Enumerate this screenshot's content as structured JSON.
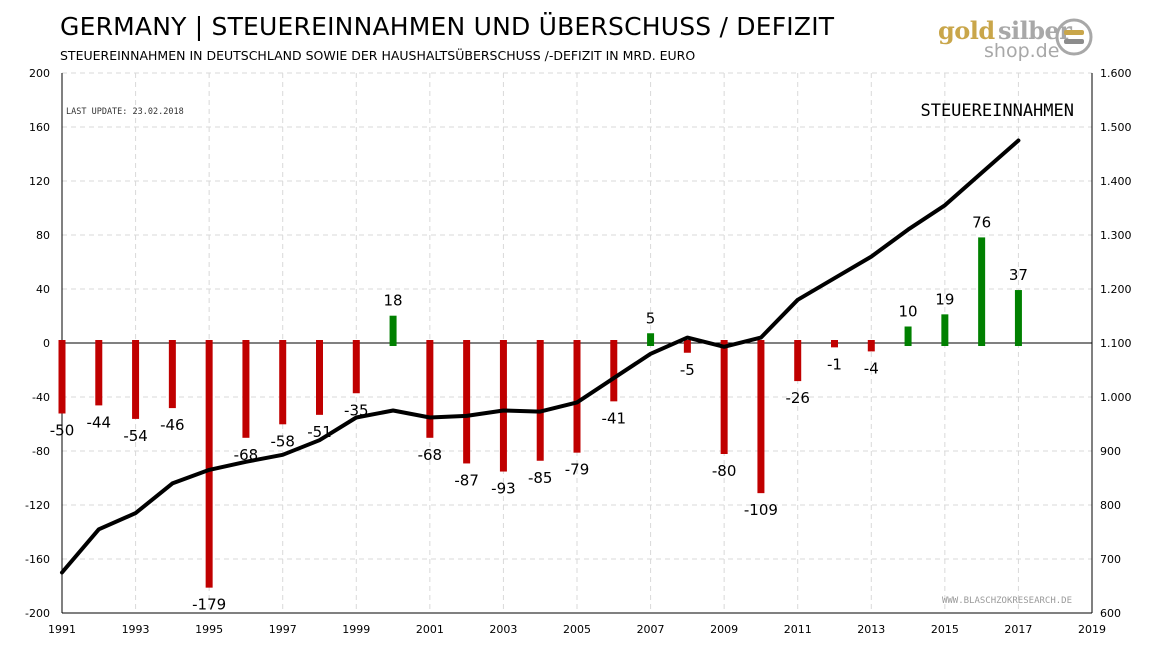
{
  "header": {
    "title": "GERMANY  | STEUEREINNAHMEN UND ÜBERSCHUSS / DEFIZIT",
    "subtitle": "STEUEREINNAHMEN IN DEUTSCHLAND SOWIE DER HAUSHALTSÜBERSCHUSS /-DEFIZIT IN MRD. EURO"
  },
  "logo": {
    "word1": "gold",
    "word2": "silber",
    "word3": "shop.de",
    "icon": "coin-stack-icon"
  },
  "colors": {
    "deficit": "#c00000",
    "surplus": "#008000",
    "line": "#000000",
    "grid": "#d9d9d9"
  },
  "chart_data": {
    "type": "bar",
    "title": "GERMANY  | STEUEREINNAHMEN UND ÜBERSCHUSS / DEFIZIT",
    "subtitle": "STEUEREINNAHMEN IN DEUTSCHLAND SOWIE DER HAUSHALTSÜBERSCHUSS /-DEFIZIT IN MRD. EURO",
    "annotations": {
      "last_update": "LAST UPDATE: 23.02.2018",
      "line_label": "STEUEREINNAHMEN",
      "source": "WWW.BLASCHZOKRESEARCH.DE"
    },
    "x_axis": {
      "range": [
        1991,
        2019
      ],
      "ticks": [
        1991,
        1993,
        1995,
        1997,
        1999,
        2001,
        2003,
        2005,
        2007,
        2009,
        2011,
        2013,
        2015,
        2017,
        2019
      ]
    },
    "y_left": {
      "range": [
        -200,
        200
      ],
      "ticks": [
        -200,
        -160,
        -120,
        -80,
        -40,
        0,
        40,
        80,
        120,
        160,
        200
      ]
    },
    "y_right": {
      "range": [
        600,
        1600
      ],
      "ticks": [
        600,
        700,
        800,
        900,
        1000,
        1100,
        1200,
        1300,
        1400,
        1500,
        1600
      ],
      "tick_labels": [
        "600",
        "700",
        "800",
        "900",
        "1.000",
        "1.100",
        "1.200",
        "1.300",
        "1.400",
        "1.500",
        "1.600"
      ]
    },
    "grid": true,
    "years": [
      1991,
      1992,
      1993,
      1994,
      1995,
      1996,
      1997,
      1998,
      1999,
      2000,
      2001,
      2002,
      2003,
      2004,
      2005,
      2006,
      2007,
      2008,
      2009,
      2010,
      2011,
      2012,
      2013,
      2014,
      2015,
      2016,
      2017
    ],
    "series": [
      {
        "name": "Überschuss / Defizit",
        "type": "bar",
        "axis": "left",
        "values": [
          -50,
          -44,
          -54,
          -46,
          -179,
          -68,
          -58,
          -51,
          -35,
          18,
          -68,
          -87,
          -93,
          -85,
          -79,
          -41,
          5,
          -5,
          -80,
          -109,
          -26,
          -1,
          -4,
          10,
          19,
          76,
          37
        ]
      },
      {
        "name": "STEUEREINNAHMEN",
        "type": "line",
        "axis": "right",
        "values": [
          675,
          755,
          785,
          840,
          865,
          880,
          893,
          920,
          962,
          975,
          962,
          965,
          975,
          973,
          990,
          1035,
          1080,
          1110,
          1093,
          1110,
          1180,
          1220,
          1260,
          1310,
          1355,
          1415,
          1475
        ]
      }
    ]
  }
}
